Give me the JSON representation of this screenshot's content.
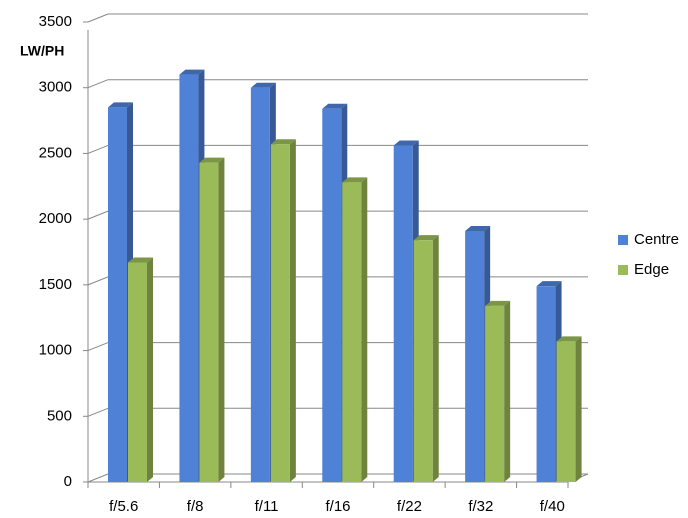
{
  "chart_data": {
    "type": "bar3d",
    "y_label": "LW/PH",
    "categories": [
      "f/5.6",
      "f/8",
      "f/11",
      "f/16",
      "f/22",
      "f/32",
      "f/40"
    ],
    "series": [
      {
        "name": "Centre",
        "color": "#4f81d6",
        "values": [
          2850,
          3100,
          3000,
          2840,
          2560,
          1910,
          1490
        ]
      },
      {
        "name": "Edge",
        "color": "#9bbb59",
        "values": [
          1670,
          2430,
          2570,
          2280,
          1840,
          1340,
          1070
        ]
      }
    ],
    "ylim": [
      0,
      3500
    ],
    "yticks": [
      0,
      500,
      1000,
      1500,
      2000,
      2500,
      3000,
      3500
    ],
    "grid": true
  }
}
